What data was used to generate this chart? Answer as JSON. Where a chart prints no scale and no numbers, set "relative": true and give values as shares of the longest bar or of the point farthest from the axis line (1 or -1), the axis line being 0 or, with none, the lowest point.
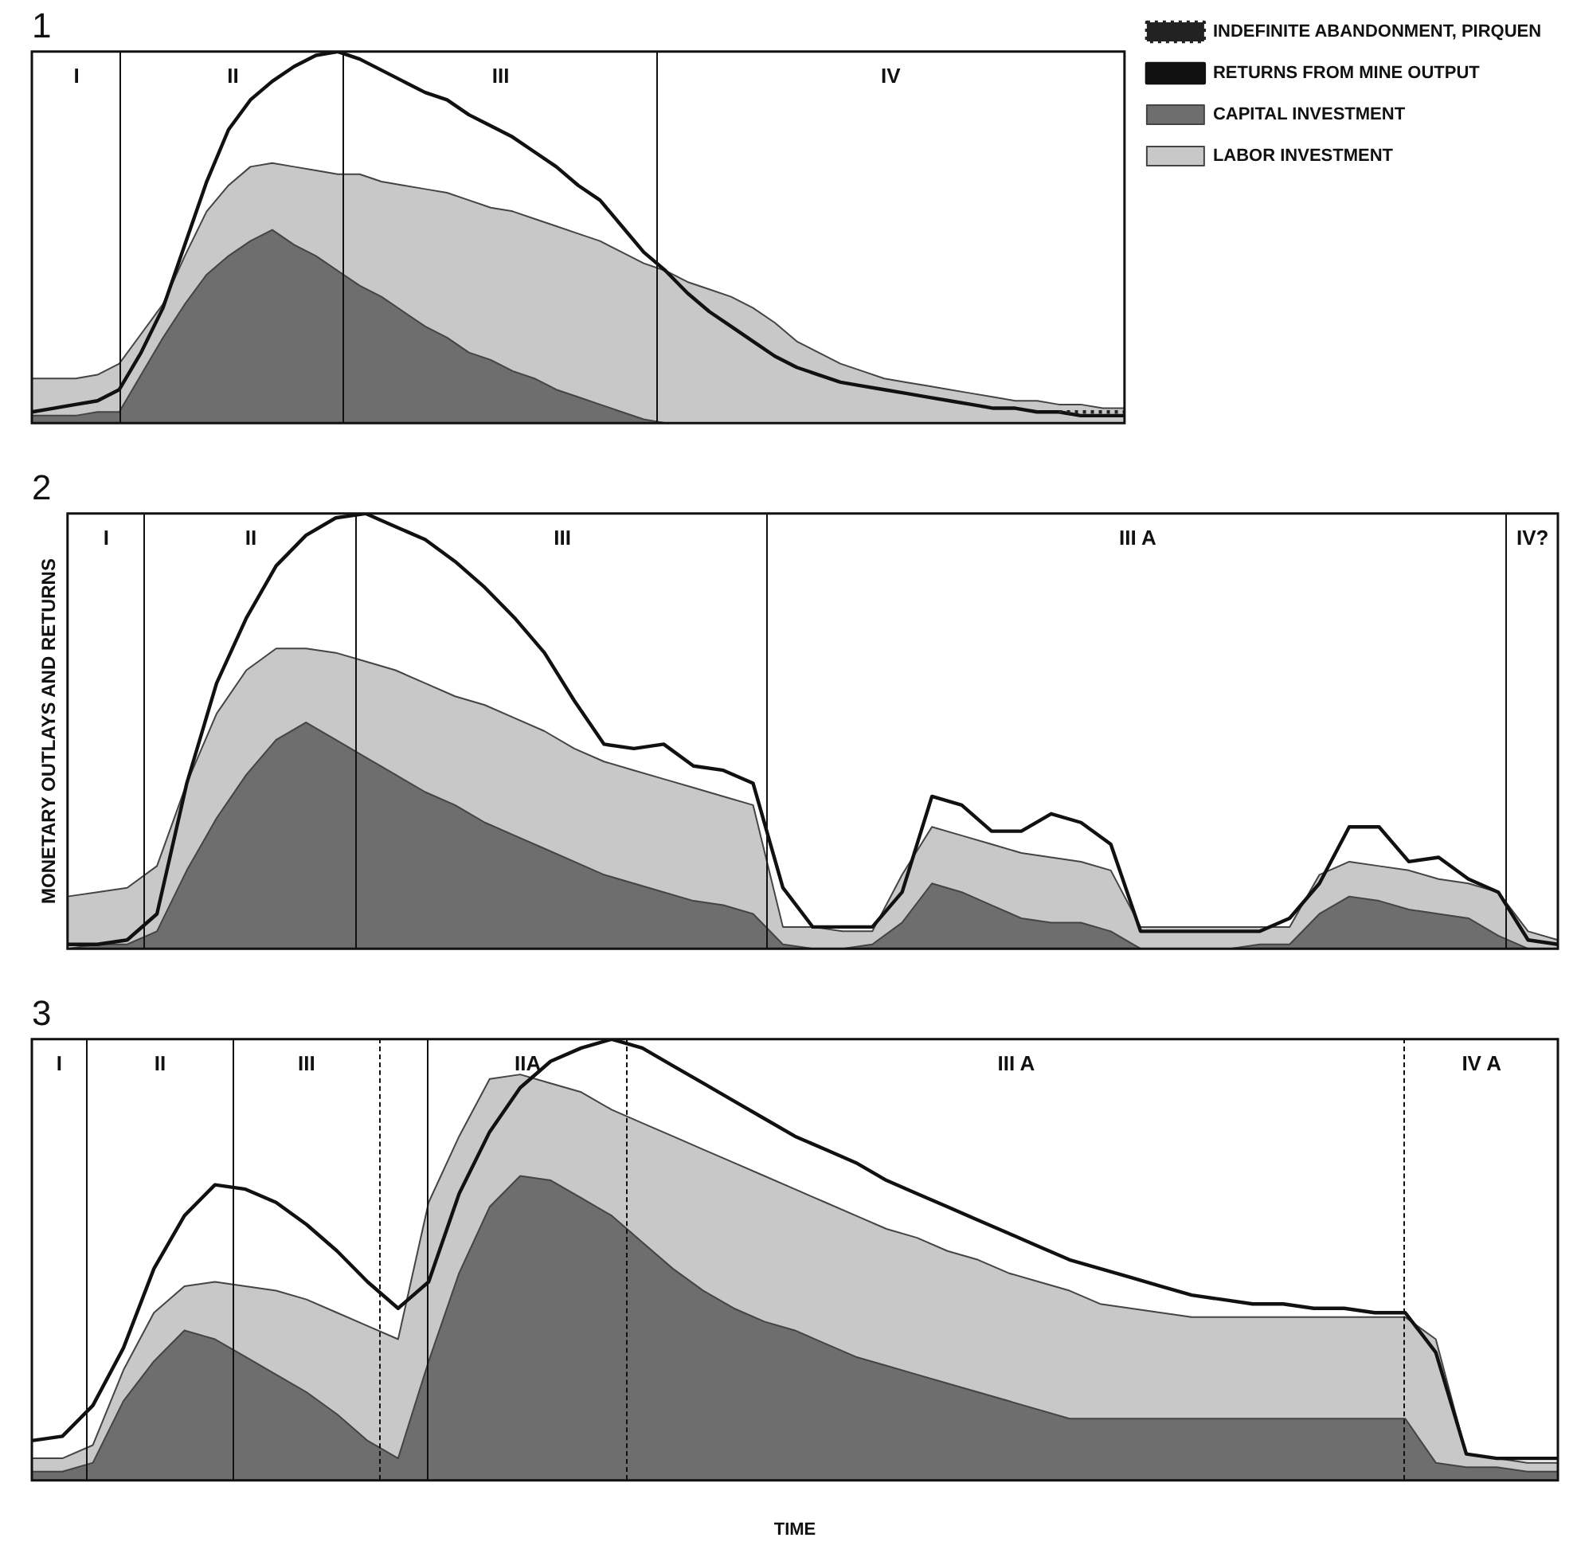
{
  "chart_data": [
    {
      "type": "area",
      "title": "1",
      "relative": true,
      "legend": "right",
      "categories": [
        null,
        null,
        null,
        null,
        null,
        null,
        null,
        null,
        null,
        null,
        null,
        null,
        null,
        null,
        null,
        null,
        null,
        null,
        null,
        null,
        null,
        null,
        null,
        null,
        null,
        null,
        null,
        null,
        null,
        null,
        null,
        null,
        null,
        null,
        null,
        null,
        null,
        null,
        null,
        null,
        null,
        null,
        null,
        null,
        null,
        null,
        null,
        null,
        null,
        null,
        null
      ],
      "series": [
        {
          "name": "RETURNS FROM MINE OUTPUT",
          "type": "line",
          "color": "#111111",
          "values": [
            0.03,
            0.04,
            0.05,
            0.06,
            0.09,
            0.19,
            0.31,
            0.48,
            0.65,
            0.79,
            0.87,
            0.92,
            0.96,
            0.99,
            1.0,
            0.98,
            0.95,
            0.92,
            0.89,
            0.87,
            0.83,
            0.8,
            0.77,
            0.73,
            0.69,
            0.64,
            0.6,
            0.53,
            0.46,
            0.41,
            0.35,
            0.3,
            0.26,
            0.22,
            0.18,
            0.15,
            0.13,
            0.11,
            0.1,
            0.09,
            0.08,
            0.07,
            0.06,
            0.05,
            0.04,
            0.04,
            0.03,
            0.03,
            0.02,
            0.02,
            0.02
          ]
        },
        {
          "name": "LABOR INVESTMENT",
          "color": "#c8c8c8",
          "values": [
            0.12,
            0.12,
            0.12,
            0.13,
            0.16,
            0.24,
            0.32,
            0.45,
            0.57,
            0.64,
            0.69,
            0.7,
            0.69,
            0.68,
            0.67,
            0.67,
            0.65,
            0.64,
            0.63,
            0.62,
            0.6,
            0.58,
            0.57,
            0.55,
            0.53,
            0.51,
            0.49,
            0.46,
            0.43,
            0.41,
            0.38,
            0.36,
            0.34,
            0.31,
            0.27,
            0.22,
            0.19,
            0.16,
            0.14,
            0.12,
            0.11,
            0.1,
            0.09,
            0.08,
            0.07,
            0.06,
            0.06,
            0.05,
            0.05,
            0.04,
            0.04
          ]
        },
        {
          "name": "CAPITAL INVESTMENT",
          "color": "#6e6e6e",
          "values": [
            0.02,
            0.02,
            0.02,
            0.03,
            0.03,
            0.13,
            0.23,
            0.32,
            0.4,
            0.45,
            0.49,
            0.52,
            0.48,
            0.45,
            0.41,
            0.37,
            0.34,
            0.3,
            0.26,
            0.23,
            0.19,
            0.17,
            0.14,
            0.12,
            0.09,
            0.07,
            0.05,
            0.03,
            0.01,
            0,
            0,
            0,
            0,
            0,
            0,
            0,
            0,
            0,
            0,
            0,
            0,
            0,
            0,
            0,
            0,
            0,
            0,
            0,
            0,
            0,
            0
          ]
        },
        {
          "name": "INDEFINITE ABANDONMENT, PIRQUEN",
          "type": "line",
          "line_style": "dotted",
          "color": "#222222",
          "values": [
            null,
            null,
            null,
            null,
            null,
            null,
            null,
            null,
            null,
            null,
            null,
            null,
            null,
            null,
            null,
            null,
            null,
            null,
            null,
            null,
            null,
            null,
            null,
            null,
            null,
            null,
            null,
            null,
            null,
            null,
            null,
            null,
            null,
            null,
            null,
            null,
            null,
            null,
            null,
            null,
            null,
            null,
            null,
            null,
            null,
            null,
            null,
            0.03,
            0.03,
            0.03,
            0.03
          ]
        }
      ],
      "annotations": [
        "I",
        "II",
        "III",
        "IV"
      ]
    },
    {
      "type": "area",
      "title": "2",
      "ylabel": "MONETARY OUTLAYS AND RETURNS",
      "relative": true,
      "categories": [
        null,
        null,
        null,
        null,
        null,
        null,
        null,
        null,
        null,
        null,
        null,
        null,
        null,
        null,
        null,
        null,
        null,
        null,
        null,
        null,
        null,
        null,
        null,
        null,
        null,
        null,
        null,
        null,
        null,
        null,
        null,
        null,
        null,
        null,
        null,
        null,
        null,
        null,
        null,
        null,
        null,
        null,
        null,
        null,
        null,
        null,
        null,
        null,
        null,
        null,
        null
      ],
      "series": [
        {
          "type": "line",
          "color": "#111111",
          "values": [
            0.01,
            0.01,
            0.02,
            0.08,
            0.38,
            0.61,
            0.76,
            0.88,
            0.95,
            0.99,
            1.0,
            0.97,
            0.94,
            0.89,
            0.83,
            0.76,
            0.68,
            0.57,
            0.47,
            0.46,
            0.47,
            0.42,
            0.41,
            0.38,
            0.14,
            0.05,
            0.05,
            0.05,
            0.13,
            0.35,
            0.33,
            0.27,
            0.27,
            0.31,
            0.29,
            0.24,
            0.04,
            0.04,
            0.04,
            0.04,
            0.04,
            0.07,
            0.15,
            0.28,
            0.28,
            0.2,
            0.21,
            0.16,
            0.13,
            0.02,
            0.01
          ]
        },
        {
          "color": "#c8c8c8",
          "values": [
            0.12,
            0.13,
            0.14,
            0.19,
            0.38,
            0.54,
            0.64,
            0.69,
            0.69,
            0.68,
            0.66,
            0.64,
            0.61,
            0.58,
            0.56,
            0.53,
            0.5,
            0.46,
            0.43,
            0.41,
            0.39,
            0.37,
            0.35,
            0.33,
            0.05,
            0.05,
            0.04,
            0.04,
            0.17,
            0.28,
            0.26,
            0.24,
            0.22,
            0.21,
            0.2,
            0.18,
            0.05,
            0.05,
            0.05,
            0.05,
            0.05,
            0.05,
            0.17,
            0.2,
            0.19,
            0.18,
            0.16,
            0.15,
            0.13,
            0.04,
            0.02
          ]
        },
        {
          "color": "#6e6e6e",
          "values": [
            0,
            0.01,
            0.01,
            0.04,
            0.18,
            0.3,
            0.4,
            0.48,
            0.52,
            0.48,
            0.44,
            0.4,
            0.36,
            0.33,
            0.29,
            0.26,
            0.23,
            0.2,
            0.17,
            0.15,
            0.13,
            0.11,
            0.1,
            0.08,
            0.01,
            0,
            0,
            0.01,
            0.06,
            0.15,
            0.13,
            0.1,
            0.07,
            0.06,
            0.06,
            0.04,
            0,
            0,
            0,
            0,
            0.01,
            0.01,
            0.08,
            0.12,
            0.11,
            0.09,
            0.08,
            0.07,
            0.03,
            0,
            0
          ]
        }
      ],
      "annotations": [
        "I",
        "II",
        "III",
        "III A",
        "IV?"
      ]
    },
    {
      "type": "area",
      "title": "3",
      "xlabel": "TIME",
      "relative": true,
      "categories": [
        null,
        null,
        null,
        null,
        null,
        null,
        null,
        null,
        null,
        null,
        null,
        null,
        null,
        null,
        null,
        null,
        null,
        null,
        null,
        null,
        null,
        null,
        null,
        null,
        null,
        null,
        null,
        null,
        null,
        null,
        null,
        null,
        null,
        null,
        null,
        null,
        null,
        null,
        null,
        null,
        null,
        null,
        null,
        null,
        null,
        null,
        null,
        null,
        null,
        null,
        null
      ],
      "series": [
        {
          "type": "line",
          "color": "#111111",
          "values": [
            0.09,
            0.1,
            0.17,
            0.3,
            0.48,
            0.6,
            0.67,
            0.66,
            0.63,
            0.58,
            0.52,
            0.45,
            0.39,
            0.45,
            0.65,
            0.79,
            0.89,
            0.95,
            0.98,
            1.0,
            0.98,
            0.94,
            0.9,
            0.86,
            0.82,
            0.78,
            0.75,
            0.72,
            0.68,
            0.65,
            0.62,
            0.59,
            0.56,
            0.53,
            0.5,
            0.48,
            0.46,
            0.44,
            0.42,
            0.41,
            0.4,
            0.4,
            0.39,
            0.39,
            0.38,
            0.38,
            0.29,
            0.06,
            0.05,
            0.05,
            0.05
          ]
        },
        {
          "color": "#c8c8c8",
          "values": [
            0.05,
            0.05,
            0.08,
            0.25,
            0.38,
            0.44,
            0.45,
            0.44,
            0.43,
            0.41,
            0.38,
            0.35,
            0.32,
            0.63,
            0.78,
            0.91,
            0.92,
            0.9,
            0.88,
            0.84,
            0.81,
            0.78,
            0.75,
            0.72,
            0.69,
            0.66,
            0.63,
            0.6,
            0.57,
            0.55,
            0.52,
            0.5,
            0.47,
            0.45,
            0.43,
            0.4,
            0.39,
            0.38,
            0.37,
            0.37,
            0.37,
            0.37,
            0.37,
            0.37,
            0.37,
            0.37,
            0.32,
            0.06,
            0.05,
            0.04,
            0.04
          ]
        },
        {
          "color": "#6e6e6e",
          "values": [
            0.02,
            0.02,
            0.04,
            0.18,
            0.27,
            0.34,
            0.32,
            0.28,
            0.24,
            0.2,
            0.15,
            0.09,
            0.05,
            0.27,
            0.47,
            0.62,
            0.69,
            0.68,
            0.64,
            0.6,
            0.54,
            0.48,
            0.43,
            0.39,
            0.36,
            0.34,
            0.31,
            0.28,
            0.26,
            0.24,
            0.22,
            0.2,
            0.18,
            0.16,
            0.14,
            0.14,
            0.14,
            0.14,
            0.14,
            0.14,
            0.14,
            0.14,
            0.14,
            0.14,
            0.14,
            0.14,
            0.04,
            0.03,
            0.03,
            0.02,
            0.02
          ]
        }
      ],
      "annotations": [
        "I",
        "II",
        "III",
        "IIA",
        "III A",
        "IV A"
      ]
    }
  ]
}
